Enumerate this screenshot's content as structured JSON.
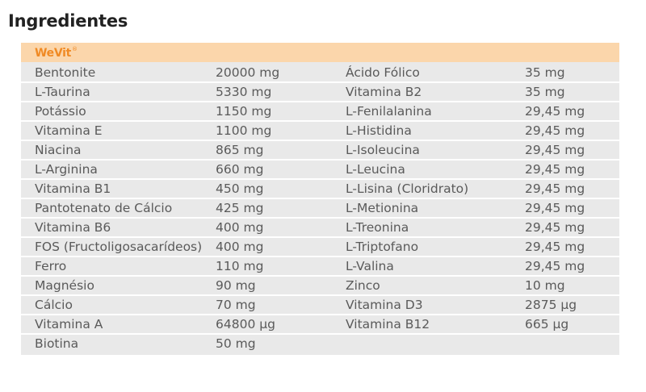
{
  "heading": "Ingredientes",
  "brand": {
    "name": "WeVit",
    "mark": "®"
  },
  "left_column": [
    {
      "name": "Bentonite",
      "amount": "20000 mg"
    },
    {
      "name": "L-Taurina",
      "amount": "5330 mg"
    },
    {
      "name": "Potássio",
      "amount": "1150 mg"
    },
    {
      "name": "Vitamina E",
      "amount": "1100 mg"
    },
    {
      "name": "Niacina",
      "amount": "865 mg"
    },
    {
      "name": "L-Arginina",
      "amount": "660 mg"
    },
    {
      "name": "Vitamina B1",
      "amount": "450 mg"
    },
    {
      "name": "Pantotenato de Cálcio",
      "amount": "425 mg"
    },
    {
      "name": "Vitamina B6",
      "amount": "400 mg"
    },
    {
      "name": "FOS (Fructoligosacarídeos)",
      "amount": "400 mg"
    },
    {
      "name": "Ferro",
      "amount": "110 mg"
    },
    {
      "name": "Magnésio",
      "amount": "90 mg"
    },
    {
      "name": "Cálcio",
      "amount": "70 mg"
    },
    {
      "name": "Vitamina A",
      "amount": "64800 µg"
    },
    {
      "name": "Biotina",
      "amount": "50 mg"
    }
  ],
  "right_column": [
    {
      "name": "Ácido Fólico",
      "amount": "35 mg"
    },
    {
      "name": "Vitamina B2",
      "amount": "35 mg"
    },
    {
      "name": "L-Fenilalanina",
      "amount": "29,45 mg"
    },
    {
      "name": "L-Histidina",
      "amount": "29,45 mg"
    },
    {
      "name": "L-Isoleucina",
      "amount": "29,45 mg"
    },
    {
      "name": "L-Leucina",
      "amount": "29,45 mg"
    },
    {
      "name": "L-Lisina (Cloridrato)",
      "amount": "29,45 mg"
    },
    {
      "name": "L-Metionina",
      "amount": "29,45 mg"
    },
    {
      "name": "L-Treonina",
      "amount": "29,45 mg"
    },
    {
      "name": "L-Triptofano",
      "amount": "29,45 mg"
    },
    {
      "name": "L-Valina",
      "amount": "29,45 mg"
    },
    {
      "name": "Zinco",
      "amount": "10 mg"
    },
    {
      "name": "Vitamina D3",
      "amount": "2875 µg"
    },
    {
      "name": "Vitamina B12",
      "amount": "665 µg"
    }
  ],
  "colors": {
    "panel_background": "#e9e9e9",
    "brand_bar": "#fbd6ab",
    "brand_text": "#f08a24",
    "row_text": "#5a5a5a",
    "separator": "#ffffff"
  }
}
